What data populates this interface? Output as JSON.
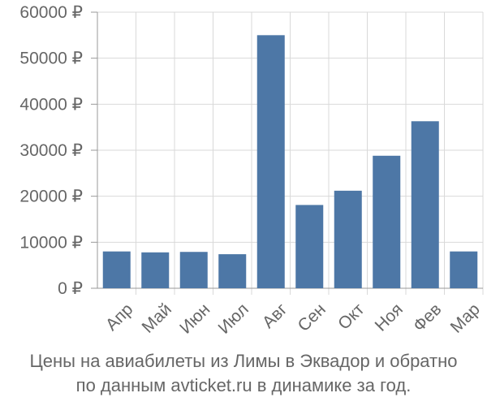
{
  "chart_data": {
    "type": "bar",
    "categories": [
      "Апр",
      "Май",
      "Июн",
      "Июл",
      "Авг",
      "Сен",
      "Окт",
      "Ноя",
      "Фев",
      "Мар"
    ],
    "values": [
      8000,
      7800,
      7900,
      7400,
      55000,
      18100,
      21200,
      28800,
      36300,
      8000
    ],
    "yticks": [
      "0 ₽",
      "10000 ₽",
      "20000 ₽",
      "30000 ₽",
      "40000 ₽",
      "50000 ₽",
      "60000 ₽"
    ],
    "ylim": [
      0,
      60000
    ],
    "bar_color": "#4d77a6",
    "grid": true,
    "title_lines": [
      "Цены на авиабилеты из Лимы в Эквадор и обратно",
      "по данным avticket.ru в динамике за год."
    ]
  }
}
